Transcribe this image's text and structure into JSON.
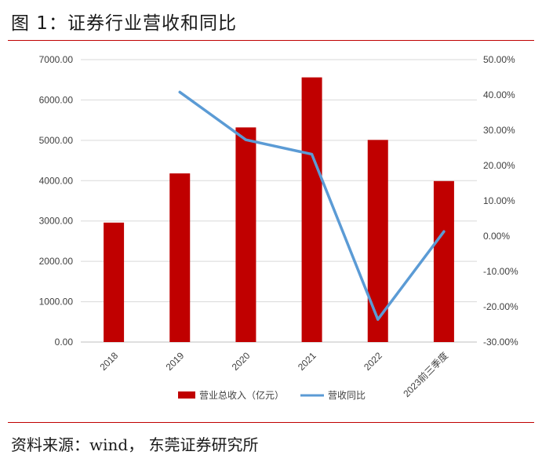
{
  "figure": {
    "title": "图 1：证券行业营收和同比",
    "source": "资料来源：wind， 东莞证券研究所"
  },
  "colors": {
    "bar": "#c00000",
    "line": "#5b9bd5",
    "rule": "#c00000",
    "grid": "#d9d9d9"
  },
  "chart_data": {
    "type": "bar",
    "categories": [
      "2018",
      "2019",
      "2020",
      "2021",
      "2022",
      "2023前三季度"
    ],
    "series": [
      {
        "name": "营业总收入（亿元）",
        "type": "bar",
        "axis": "left",
        "values": [
          2960,
          4180,
          5320,
          6560,
          5010,
          3990
        ]
      },
      {
        "name": "营收同比",
        "type": "line",
        "axis": "right",
        "values": [
          null,
          40.8,
          27.3,
          23.2,
          -23.6,
          1.3
        ]
      }
    ],
    "y_left": {
      "ylim": [
        0,
        7000
      ],
      "ticks": [
        "0.00",
        "1000.00",
        "2000.00",
        "3000.00",
        "4000.00",
        "5000.00",
        "6000.00",
        "7000.00"
      ]
    },
    "y_right": {
      "ylim": [
        -30,
        50
      ],
      "ticks": [
        "-30.00%",
        "-20.00%",
        "-10.00%",
        "0.00%",
        "10.00%",
        "20.00%",
        "30.00%",
        "40.00%",
        "50.00%"
      ]
    },
    "grid": true,
    "legend": "bottom"
  }
}
